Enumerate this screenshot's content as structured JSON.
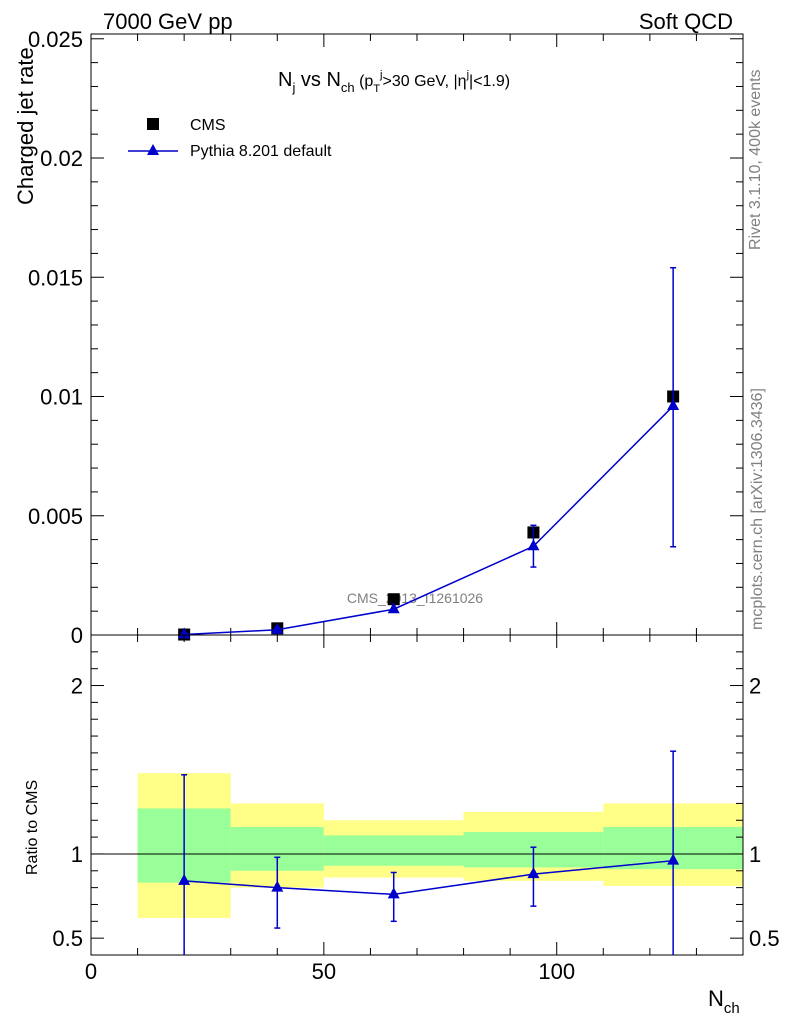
{
  "header": {
    "left": "7000 GeV pp",
    "right": "Soft QCD"
  },
  "title": {
    "n": "N",
    "j_sub": "j",
    "vs": " vs N",
    "ch_sub": "ch",
    "open": " (p",
    "T_sub": "T",
    "j_sup": "j",
    "cut1": ">30 GeV, |η",
    "j_sup2": "j",
    "cut2": "|<1.9)"
  },
  "side_labels": {
    "rivet": "Rivet 3.1.10,  400k events",
    "mcplots": "mcplots.cern.ch [arXiv:1306.3436]"
  },
  "watermark": "CMS_2013_I1261026",
  "legend": {
    "data": "CMS",
    "mc": "Pythia 8.201 default"
  },
  "colors": {
    "data": "#000000",
    "mc": "#0000cc",
    "band_inner": "#99ff99",
    "band_outer": "#ffff88",
    "side_text": "#808080"
  },
  "chart_data": [
    {
      "type": "scatter",
      "ylabel": "Charged jet rate",
      "xlim": [
        0,
        140
      ],
      "ylim": [
        0,
        0.0252
      ],
      "x_ticks": [
        0,
        50,
        100
      ],
      "y_ticks": [
        {
          "v": 0,
          "t": "0"
        },
        {
          "v": 0.005,
          "t": "0.005"
        },
        {
          "v": 0.01,
          "t": "0.01"
        },
        {
          "v": 0.015,
          "t": "0.015"
        },
        {
          "v": 0.02,
          "t": "0.02"
        },
        {
          "v": 0.025,
          "t": "0.025"
        }
      ],
      "series": [
        {
          "name": "CMS",
          "marker": "square",
          "x": [
            20,
            40,
            65,
            95,
            125
          ],
          "y": [
            2e-05,
            0.00028,
            0.0015,
            0.0043,
            0.01
          ]
        },
        {
          "name": "Pythia 8.201 default",
          "marker": "triangle",
          "x": [
            20,
            40,
            65,
            95,
            125
          ],
          "y": [
            2e-05,
            0.00022,
            0.00108,
            0.00372,
            0.0096
          ],
          "err_lo": [
            2e-05,
            0.00022,
            0.00108,
            0.00285,
            0.0037
          ],
          "err_hi": [
            2e-05,
            0.00022,
            0.00108,
            0.0046,
            0.0154
          ]
        }
      ]
    },
    {
      "type": "scatter",
      "xlabel": "Nch",
      "ylabel": "Ratio to CMS",
      "xlim": [
        0,
        140
      ],
      "ylim": [
        0.4,
        2.3
      ],
      "x_ticks": [
        0,
        50,
        100
      ],
      "y_ticks": [
        {
          "v": 0.5,
          "t": "0.5"
        },
        {
          "v": 1,
          "t": "1"
        },
        {
          "v": 2,
          "t": "2"
        }
      ],
      "bands": [
        {
          "x0": 10,
          "x1": 30,
          "inner": [
            0.83,
            1.27
          ],
          "outer": [
            0.62,
            1.48
          ]
        },
        {
          "x0": 30,
          "x1": 50,
          "inner": [
            0.9,
            1.16
          ],
          "outer": [
            0.8,
            1.3
          ]
        },
        {
          "x0": 50,
          "x1": 80,
          "inner": [
            0.93,
            1.11
          ],
          "outer": [
            0.86,
            1.2
          ]
        },
        {
          "x0": 80,
          "x1": 110,
          "inner": [
            0.92,
            1.13
          ],
          "outer": [
            0.84,
            1.25
          ]
        },
        {
          "x0": 110,
          "x1": 140,
          "inner": [
            0.91,
            1.16
          ],
          "outer": [
            0.81,
            1.3
          ]
        }
      ],
      "series": [
        {
          "name": "Pythia 8.201 default",
          "x": [
            20,
            40,
            65,
            95,
            125
          ],
          "y": [
            0.84,
            0.8,
            0.76,
            0.88,
            0.96
          ],
          "err_lo": [
            0.3,
            0.56,
            0.6,
            0.69,
            0.3
          ],
          "err_hi": [
            1.47,
            0.98,
            0.89,
            1.04,
            1.61
          ]
        }
      ]
    }
  ]
}
